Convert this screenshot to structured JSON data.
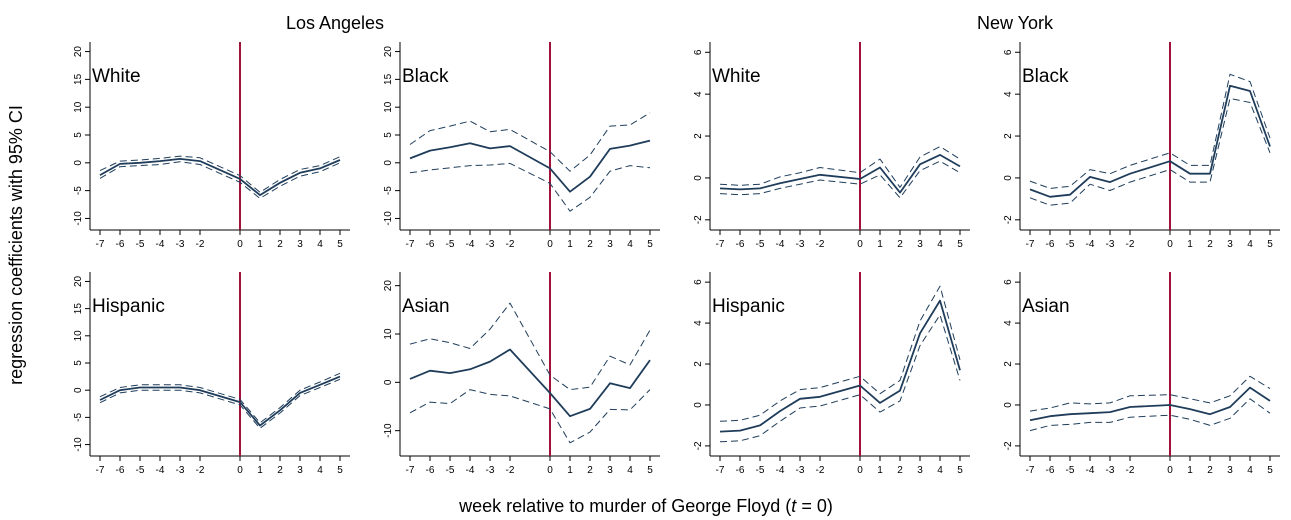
{
  "figure": {
    "city_titles": [
      "Los Angeles",
      "New York"
    ],
    "ylabel": "regression coefficients with 95% CI",
    "xlabel_prefix": "week relative to murder of George Floyd (",
    "xlabel_var": "t",
    "xlabel_suffix": " = 0)"
  },
  "colors": {
    "line": "#1f3d5a",
    "vline": "#a0123a",
    "axis": "#000000"
  },
  "chart_data": [
    {
      "type": "line",
      "city": "Los Angeles",
      "panel_label": "White",
      "x": [
        -7,
        -6,
        -5,
        -4,
        -3,
        -2,
        0,
        1,
        2,
        3,
        4,
        5
      ],
      "ylim": [
        -11,
        21
      ],
      "yticks": [
        -10,
        -5,
        0,
        5,
        10,
        15,
        20
      ],
      "series": [
        {
          "values": [
            -2.2,
            -0.2,
            0.0,
            0.3,
            0.7,
            0.3,
            -2.9,
            -5.8,
            -3.6,
            -1.8,
            -1.0,
            0.5
          ]
        },
        {
          "values": [
            -1.4,
            0.3,
            0.5,
            0.8,
            1.2,
            0.9,
            -2.3,
            -5.3,
            -3.0,
            -1.2,
            -0.5,
            1.1
          ]
        },
        {
          "values": [
            -2.8,
            -0.7,
            -0.5,
            -0.3,
            0.2,
            -0.3,
            -3.5,
            -6.4,
            -4.2,
            -2.4,
            -1.6,
            0.0
          ]
        }
      ]
    },
    {
      "type": "line",
      "city": "Los Angeles",
      "panel_label": "Black",
      "x": [
        -7,
        -6,
        -5,
        -4,
        -3,
        -2,
        0,
        1,
        2,
        3,
        4,
        5
      ],
      "ylim": [
        -11,
        21
      ],
      "yticks": [
        -10,
        -5,
        0,
        5,
        10,
        15,
        20
      ],
      "series": [
        {
          "values": [
            0.8,
            2.2,
            2.8,
            3.5,
            2.6,
            3.0,
            -1.0,
            -5.2,
            -2.5,
            2.5,
            3.1,
            4.0
          ]
        },
        {
          "values": [
            3.3,
            5.8,
            6.6,
            7.5,
            5.6,
            6.0,
            2.0,
            -1.5,
            1.4,
            6.6,
            6.8,
            9.0
          ]
        },
        {
          "values": [
            -1.8,
            -1.3,
            -0.9,
            -0.5,
            -0.4,
            -0.1,
            -3.7,
            -8.7,
            -6.2,
            -1.5,
            -0.5,
            -0.9
          ]
        }
      ]
    },
    {
      "type": "line",
      "city": "New York",
      "panel_label": "White",
      "x": [
        -7,
        -6,
        -5,
        -4,
        -3,
        -2,
        0,
        1,
        2,
        3,
        4,
        5
      ],
      "ylim": [
        -2.2,
        6.3
      ],
      "yticks": [
        -2,
        0,
        2,
        4,
        6
      ],
      "series": [
        {
          "values": [
            -0.5,
            -0.55,
            -0.5,
            -0.25,
            -0.05,
            0.15,
            -0.05,
            0.5,
            -0.7,
            0.65,
            1.1,
            0.55
          ]
        },
        {
          "values": [
            -0.3,
            -0.35,
            -0.3,
            0.05,
            0.25,
            0.5,
            0.25,
            0.9,
            -0.45,
            1.0,
            1.5,
            0.9
          ]
        },
        {
          "values": [
            -0.75,
            -0.8,
            -0.75,
            -0.5,
            -0.3,
            -0.1,
            -0.3,
            0.15,
            -0.95,
            0.35,
            0.8,
            0.25
          ]
        }
      ]
    },
    {
      "type": "line",
      "city": "New York",
      "panel_label": "Black",
      "x": [
        -7,
        -6,
        -5,
        -4,
        -3,
        -2,
        0,
        1,
        2,
        3,
        4,
        5
      ],
      "ylim": [
        -2.2,
        6.3
      ],
      "yticks": [
        -2,
        0,
        2,
        4,
        6
      ],
      "series": [
        {
          "values": [
            -0.55,
            -0.9,
            -0.8,
            0.05,
            -0.2,
            0.2,
            0.8,
            0.2,
            0.2,
            4.4,
            4.15,
            1.5
          ]
        },
        {
          "values": [
            -0.15,
            -0.5,
            -0.4,
            0.4,
            0.2,
            0.6,
            1.2,
            0.6,
            0.6,
            4.95,
            4.6,
            1.9
          ]
        },
        {
          "values": [
            -0.95,
            -1.3,
            -1.2,
            -0.3,
            -0.6,
            -0.2,
            0.4,
            -0.2,
            -0.2,
            3.8,
            3.6,
            1.2
          ]
        }
      ]
    },
    {
      "type": "line",
      "city": "Los Angeles",
      "panel_label": "Hispanic",
      "x": [
        -7,
        -6,
        -5,
        -4,
        -3,
        -2,
        0,
        1,
        2,
        3,
        4,
        5
      ],
      "ylim": [
        -11,
        21
      ],
      "yticks": [
        -10,
        -5,
        0,
        5,
        10,
        15,
        20
      ],
      "series": [
        {
          "values": [
            -1.8,
            0.0,
            0.5,
            0.5,
            0.5,
            0.0,
            -2.2,
            -6.5,
            -3.7,
            -0.5,
            1.0,
            2.5
          ]
        },
        {
          "values": [
            -1.2,
            0.5,
            1.0,
            1.0,
            1.0,
            0.5,
            -1.7,
            -6.0,
            -3.2,
            0.0,
            1.5,
            3.1
          ]
        },
        {
          "values": [
            -2.3,
            -0.5,
            0.0,
            0.0,
            0.0,
            -0.5,
            -2.7,
            -7.0,
            -4.2,
            -1.0,
            0.5,
            2.0
          ]
        }
      ]
    },
    {
      "type": "line",
      "city": "Los Angeles",
      "panel_label": "Asian",
      "x": [
        -7,
        -6,
        -5,
        -4,
        -3,
        -2,
        0,
        1,
        2,
        3,
        4,
        5
      ],
      "ylim": [
        -14,
        22
      ],
      "yticks": [
        -10,
        0,
        10,
        20
      ],
      "series": [
        {
          "values": [
            0.7,
            2.4,
            1.9,
            2.7,
            4.3,
            6.8,
            -2.2,
            -7.0,
            -5.5,
            -0.2,
            -1.2,
            4.6
          ]
        },
        {
          "values": [
            7.9,
            9.0,
            8.2,
            7.0,
            11.0,
            16.4,
            1.5,
            -1.5,
            -1.0,
            5.4,
            3.6,
            10.8
          ]
        },
        {
          "values": [
            -6.3,
            -4.1,
            -4.4,
            -1.5,
            -2.5,
            -2.8,
            -5.5,
            -12.5,
            -10.3,
            -5.6,
            -5.7,
            -1.5
          ]
        }
      ]
    },
    {
      "type": "line",
      "city": "New York",
      "panel_label": "Hispanic",
      "x": [
        -7,
        -6,
        -5,
        -4,
        -3,
        -2,
        0,
        1,
        2,
        3,
        4,
        5
      ],
      "ylim": [
        -2.2,
        6.3
      ],
      "yticks": [
        -2,
        0,
        2,
        4,
        6
      ],
      "series": [
        {
          "values": [
            -1.3,
            -1.25,
            -1.0,
            -0.3,
            0.3,
            0.4,
            0.95,
            0.1,
            0.7,
            3.5,
            5.1,
            1.7
          ]
        },
        {
          "values": [
            -0.8,
            -0.75,
            -0.5,
            0.2,
            0.75,
            0.85,
            1.4,
            0.55,
            1.2,
            4.1,
            5.8,
            2.2
          ]
        },
        {
          "values": [
            -1.8,
            -1.75,
            -1.5,
            -0.8,
            -0.15,
            -0.05,
            0.5,
            -0.35,
            0.2,
            2.9,
            4.4,
            1.2
          ]
        }
      ]
    },
    {
      "type": "line",
      "city": "New York",
      "panel_label": "Asian",
      "x": [
        -7,
        -6,
        -5,
        -4,
        -3,
        -2,
        0,
        1,
        2,
        3,
        4,
        5
      ],
      "ylim": [
        -2.2,
        6.3
      ],
      "yticks": [
        -2,
        0,
        2,
        4,
        6
      ],
      "series": [
        {
          "values": [
            -0.75,
            -0.55,
            -0.45,
            -0.4,
            -0.35,
            -0.1,
            0.0,
            -0.2,
            -0.45,
            -0.1,
            0.85,
            0.2
          ]
        },
        {
          "values": [
            -0.3,
            -0.15,
            0.1,
            0.05,
            0.1,
            0.45,
            0.5,
            0.3,
            0.1,
            0.45,
            1.4,
            0.8
          ]
        },
        {
          "values": [
            -1.25,
            -1.0,
            -0.95,
            -0.85,
            -0.85,
            -0.6,
            -0.5,
            -0.7,
            -1.0,
            -0.65,
            0.3,
            -0.4
          ]
        }
      ]
    }
  ]
}
